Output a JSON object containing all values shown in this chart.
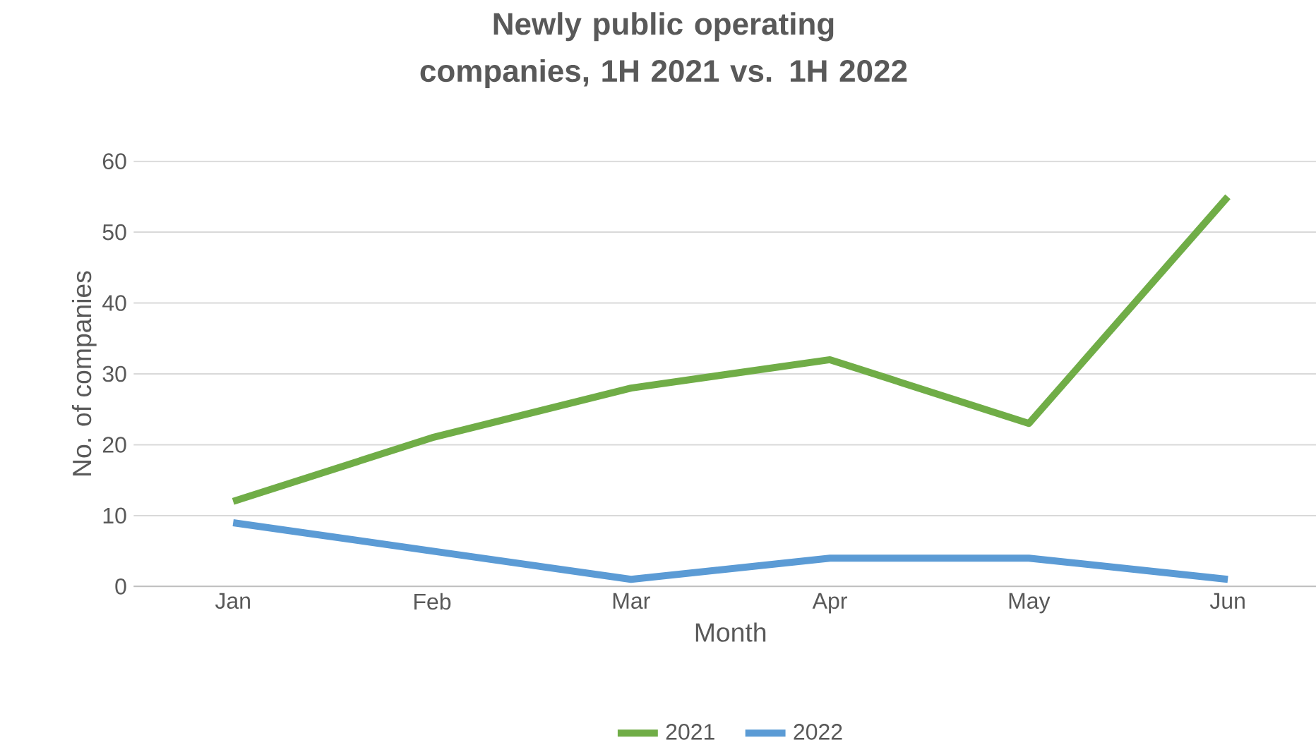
{
  "chart_data": {
    "type": "line",
    "title": "Newly public operating companies, 1H 2021 vs. 1H 2022",
    "xlabel": "Month",
    "ylabel": "No. of companies",
    "categories": [
      "Jan",
      "Feb",
      "Mar",
      "Apr",
      "May",
      "Jun"
    ],
    "series": [
      {
        "name": "2021",
        "color": "#70ad47",
        "values": [
          12,
          21,
          28,
          32,
          23,
          55
        ]
      },
      {
        "name": "2022",
        "color": "#5b9bd5",
        "values": [
          9,
          5,
          1,
          4,
          4,
          1
        ]
      }
    ],
    "ylim": [
      0,
      60
    ],
    "yticks": [
      0,
      10,
      20,
      30,
      40,
      50,
      60
    ],
    "grid": "y",
    "legend": "bottom",
    "line_style": "solid"
  }
}
